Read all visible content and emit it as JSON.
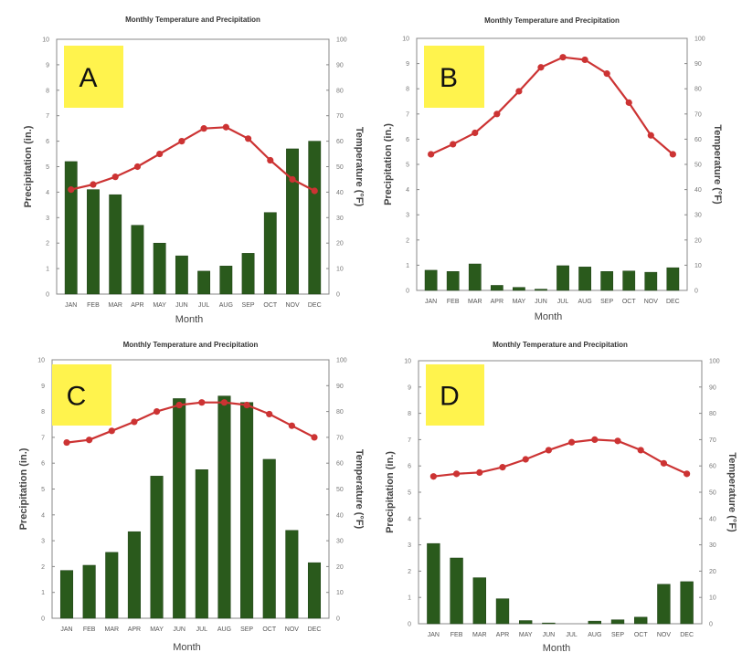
{
  "colors": {
    "bar": "#2a5a1c",
    "line": "#cc3333",
    "badge": "#fff34d",
    "axis": "#888888"
  },
  "chart_data": [
    {
      "type": "bar+line",
      "label": "A",
      "title": "Monthly Temperature and Precipitation",
      "xlabel": "Month",
      "ylabel": "Precipitation (in.)",
      "y2label": "Temperature (°F)",
      "ylim": [
        0,
        10
      ],
      "y2lim": [
        0,
        100
      ],
      "yticks": [
        "0",
        "1",
        "2",
        "3",
        "4",
        "5",
        "6",
        "7",
        "8",
        "9",
        "10"
      ],
      "y2ticks": [
        "0",
        "10",
        "20",
        "30",
        "40",
        "50",
        "60",
        "70",
        "80",
        "90",
        "100"
      ],
      "categories": [
        "JAN",
        "FEB",
        "MAR",
        "APR",
        "MAY",
        "JUN",
        "JUL",
        "AUG",
        "SEP",
        "OCT",
        "NOV",
        "DEC"
      ],
      "series": [
        {
          "name": "Precipitation",
          "type": "bar",
          "axis": "left",
          "values": [
            5.2,
            4.1,
            3.9,
            2.7,
            2.0,
            1.5,
            0.9,
            1.1,
            1.6,
            3.2,
            5.7,
            6.0
          ]
        },
        {
          "name": "Temperature",
          "type": "line",
          "axis": "right",
          "values": [
            41,
            43,
            46,
            50,
            55,
            60,
            65,
            65.5,
            61,
            52.5,
            45,
            40.5
          ]
        }
      ],
      "grid": false
    },
    {
      "type": "bar+line",
      "label": "B",
      "title": "Monthly Temperature and Precipitation",
      "xlabel": "Month",
      "ylabel": "Precipitation (in.)",
      "y2label": "Temperature (°F)",
      "ylim": [
        0,
        10
      ],
      "y2lim": [
        0,
        100
      ],
      "yticks": [
        "0",
        "1",
        "2",
        "3",
        "4",
        "5",
        "6",
        "7",
        "8",
        "9",
        "10"
      ],
      "y2ticks": [
        "0",
        "10",
        "20",
        "30",
        "40",
        "50",
        "60",
        "70",
        "80",
        "90",
        "100"
      ],
      "categories": [
        "JAN",
        "FEB",
        "MAR",
        "APR",
        "MAY",
        "JUN",
        "JUL",
        "AUG",
        "SEP",
        "OCT",
        "NOV",
        "DEC"
      ],
      "series": [
        {
          "name": "Precipitation",
          "type": "bar",
          "axis": "left",
          "values": [
            0.8,
            0.75,
            1.05,
            0.2,
            0.12,
            0.05,
            0.98,
            0.93,
            0.75,
            0.77,
            0.72,
            0.9
          ]
        },
        {
          "name": "Temperature",
          "type": "line",
          "axis": "right",
          "values": [
            54,
            58,
            62.5,
            70,
            79,
            88.5,
            92.5,
            91.5,
            86,
            74.5,
            61.5,
            54
          ]
        }
      ],
      "grid": false
    },
    {
      "type": "bar+line",
      "label": "C",
      "title": "Monthly Temperature and Precipitation",
      "xlabel": "Month",
      "ylabel": "Precipitation (in.)",
      "y2label": "Temperature (°F)",
      "ylim": [
        0,
        10
      ],
      "y2lim": [
        0,
        100
      ],
      "yticks": [
        "0",
        "1",
        "2",
        "3",
        "4",
        "5",
        "6",
        "7",
        "8",
        "9",
        "10"
      ],
      "y2ticks": [
        "0",
        "10",
        "20",
        "30",
        "40",
        "50",
        "60",
        "70",
        "80",
        "90",
        "100"
      ],
      "categories": [
        "JAN",
        "FEB",
        "MAR",
        "APR",
        "MAY",
        "JUN",
        "JUL",
        "AUG",
        "SEP",
        "OCT",
        "NOV",
        "DEC"
      ],
      "series": [
        {
          "name": "Precipitation",
          "type": "bar",
          "axis": "left",
          "values": [
            1.85,
            2.05,
            2.55,
            3.35,
            5.5,
            8.5,
            5.75,
            8.6,
            8.35,
            6.15,
            3.4,
            2.15
          ]
        },
        {
          "name": "Temperature",
          "type": "line",
          "axis": "right",
          "values": [
            68,
            69,
            72.5,
            76,
            80,
            82.5,
            83.5,
            83.5,
            82.5,
            79,
            74.5,
            70
          ]
        }
      ],
      "grid": false
    },
    {
      "type": "bar+line",
      "label": "D",
      "title": "Monthly Temperature and Precipitation",
      "xlabel": "Month",
      "ylabel": "Precipitation (in.)",
      "y2label": "Temperature (°F)",
      "ylim": [
        0,
        10
      ],
      "y2lim": [
        0,
        100
      ],
      "yticks": [
        "0",
        "1",
        "2",
        "3",
        "4",
        "5",
        "6",
        "7",
        "8",
        "9",
        "10"
      ],
      "y2ticks": [
        "0",
        "10",
        "20",
        "30",
        "40",
        "50",
        "60",
        "70",
        "80",
        "90",
        "100"
      ],
      "categories": [
        "JAN",
        "FEB",
        "MAR",
        "APR",
        "MAY",
        "JUN",
        "JUL",
        "AUG",
        "SEP",
        "OCT",
        "NOV",
        "DEC"
      ],
      "series": [
        {
          "name": "Precipitation",
          "type": "bar",
          "axis": "left",
          "values": [
            3.05,
            2.5,
            1.75,
            0.95,
            0.12,
            0.03,
            0.0,
            0.1,
            0.15,
            0.25,
            1.5,
            1.6
          ]
        },
        {
          "name": "Temperature",
          "type": "line",
          "axis": "right",
          "values": [
            56,
            57,
            57.5,
            59.5,
            62.5,
            66,
            69,
            70,
            69.5,
            66,
            61,
            57
          ]
        }
      ],
      "grid": false
    }
  ]
}
